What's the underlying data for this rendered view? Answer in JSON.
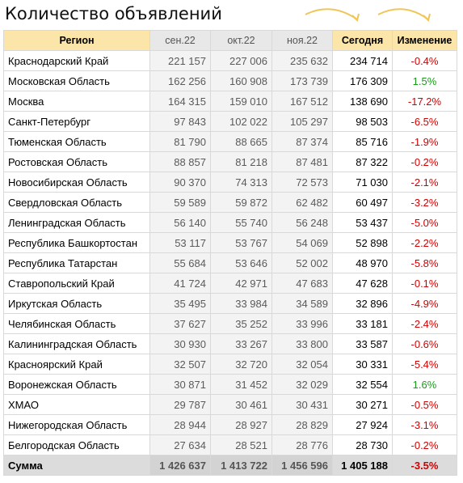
{
  "title": "Количество объявлений",
  "headers": [
    "Регион",
    "сен.22",
    "окт.22",
    "ноя.22",
    "Сегодня",
    "Изменение"
  ],
  "colors": {
    "header": "#fbe5a9",
    "negative": "#d20000",
    "positive": "#1a9a1a",
    "arrow": "#f0c65a"
  },
  "rows": [
    [
      "Краснодарский Край",
      "221 157",
      "227 006",
      "235 632",
      "234 714",
      "-0.4%"
    ],
    [
      "Московская Область",
      "162 256",
      "160 908",
      "173 739",
      "176 309",
      "1.5%"
    ],
    [
      "Москва",
      "164 315",
      "159 010",
      "167 512",
      "138 690",
      "-17.2%"
    ],
    [
      "Санкт-Петербург",
      "97 843",
      "102 022",
      "105 297",
      "98 503",
      "-6.5%"
    ],
    [
      "Тюменская Область",
      "81 790",
      "88 665",
      "87 374",
      "85 716",
      "-1.9%"
    ],
    [
      "Ростовская Область",
      "88 857",
      "81 218",
      "87 481",
      "87 322",
      "-0.2%"
    ],
    [
      "Новосибирская Область",
      "90 370",
      "74 313",
      "72 573",
      "71 030",
      "-2.1%"
    ],
    [
      "Свердловская Область",
      "59 589",
      "59 872",
      "62 482",
      "60 497",
      "-3.2%"
    ],
    [
      "Ленинградская Область",
      "56 140",
      "55 740",
      "56 248",
      "53 437",
      "-5.0%"
    ],
    [
      "Республика Башкортостан",
      "53 117",
      "53 767",
      "54 069",
      "52 898",
      "-2.2%"
    ],
    [
      "Республика Татарстан",
      "55 684",
      "53 646",
      "52 002",
      "48 970",
      "-5.8%"
    ],
    [
      "Ставропольский Край",
      "41 724",
      "42 971",
      "47 683",
      "47 628",
      "-0.1%"
    ],
    [
      "Иркутская Область",
      "35 495",
      "33 984",
      "34 589",
      "32 896",
      "-4.9%"
    ],
    [
      "Челябинская Область",
      "37 627",
      "35 252",
      "33 996",
      "33 181",
      "-2.4%"
    ],
    [
      "Калининградская Область",
      "30 930",
      "33 267",
      "33 800",
      "33 587",
      "-0.6%"
    ],
    [
      "Красноярский Край",
      "32 507",
      "32 720",
      "32 054",
      "30 331",
      "-5.4%"
    ],
    [
      "Воронежская Область",
      "30 871",
      "31 452",
      "32 029",
      "32 554",
      "1.6%"
    ],
    [
      "ХМАО",
      "29 787",
      "30 461",
      "30 431",
      "30 271",
      "-0.5%"
    ],
    [
      "Нижегородская Область",
      "28 944",
      "28 927",
      "28 829",
      "27 924",
      "-3.1%"
    ],
    [
      "Белгородская Область",
      "27 634",
      "28 521",
      "28 776",
      "28 730",
      "-0.2%"
    ]
  ],
  "total": [
    "Сумма",
    "1 426 637",
    "1 413 722",
    "1 456 596",
    "1 405 188",
    "-3.5%"
  ]
}
